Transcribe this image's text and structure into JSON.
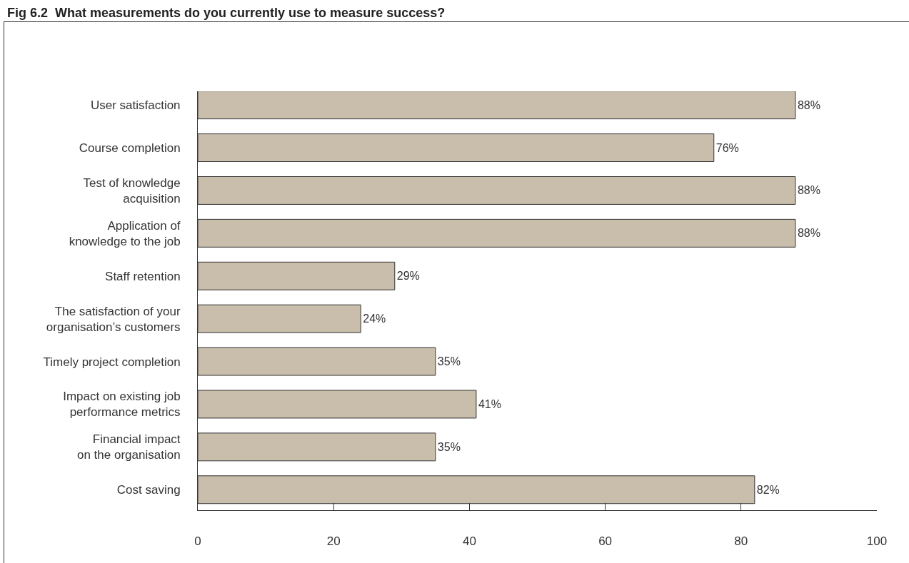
{
  "chart_data": {
    "type": "bar",
    "orientation": "horizontal",
    "title": "Fig 6.2  What measurements do you currently use to measure success?",
    "categories": [
      "User satisfaction",
      "Course completion",
      "Test of knowledge acquisition",
      "Application of knowledge to the job",
      "Staff retention",
      "The satisfaction of your organisation’s customers",
      "Timely project completion",
      "Impact on existing job performance metrics",
      "Financial impact on the organisation",
      "Cost saving"
    ],
    "values": [
      88,
      76,
      88,
      88,
      29,
      24,
      35,
      41,
      35,
      82
    ],
    "value_labels": [
      "88%",
      "76%",
      "88%",
      "88%",
      "29%",
      "24%",
      "35%",
      "41%",
      "35%",
      "82%"
    ],
    "color": "#c9bdac",
    "xlim": [
      0,
      100
    ],
    "xticks": [
      0,
      20,
      40,
      60,
      80,
      100
    ],
    "grid": false,
    "legend": false
  }
}
